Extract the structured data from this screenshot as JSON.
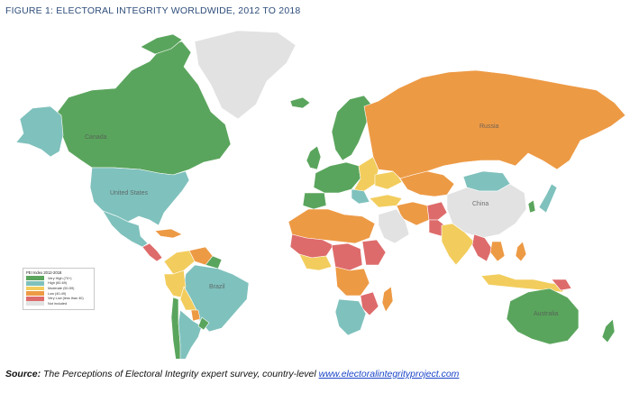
{
  "title": "FIGURE 1: ELECTORAL INTEGRITY WORLDWIDE, 2012 TO 2018",
  "legend": {
    "title": "PEI Index 2012-2018",
    "items": [
      {
        "label": "Very High (70+)",
        "color": "#5aa55d"
      },
      {
        "label": "High (60-69)",
        "color": "#7fc1bd"
      },
      {
        "label": "Moderate (50-59)",
        "color": "#f2cd5d"
      },
      {
        "label": "Low (40-49)",
        "color": "#ed9a45"
      },
      {
        "label": "Very Low (less than 40)",
        "color": "#de6b6b"
      },
      {
        "label": "Not included",
        "color": "#e2e2e2"
      }
    ]
  },
  "map_labels": {
    "canada": "Canada",
    "united_states": "United States",
    "brazil": "Brazil",
    "russia": "Russia",
    "china": "China",
    "australia": "Australia"
  },
  "source": {
    "label": "Source:",
    "text": " The Perceptions of  Electoral Integrity expert survey, country-level ",
    "link": "www.electoralintegrityproject.com"
  },
  "colors": {
    "title": "#2e4d7b",
    "link": "#1a44c8",
    "very_high": "#5aa55d",
    "high": "#7fc1bd",
    "moderate": "#f2cd5d",
    "low": "#ed9a45",
    "very_low": "#de6b6b",
    "not_included": "#e2e2e2"
  }
}
